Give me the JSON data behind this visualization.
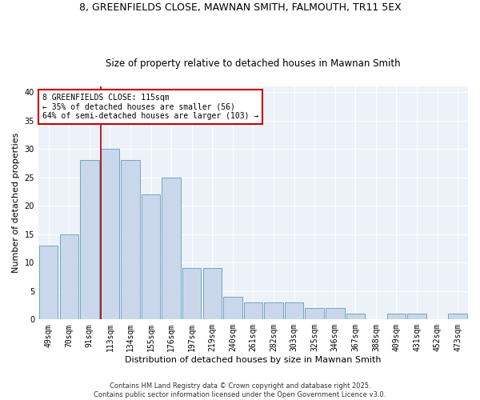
{
  "title1": "8, GREENFIELDS CLOSE, MAWNAN SMITH, FALMOUTH, TR11 5EX",
  "title2": "Size of property relative to detached houses in Mawnan Smith",
  "xlabel": "Distribution of detached houses by size in Mawnan Smith",
  "ylabel": "Number of detached properties",
  "categories": [
    "49sqm",
    "70sqm",
    "91sqm",
    "113sqm",
    "134sqm",
    "155sqm",
    "176sqm",
    "197sqm",
    "219sqm",
    "240sqm",
    "261sqm",
    "282sqm",
    "303sqm",
    "325sqm",
    "346sqm",
    "367sqm",
    "388sqm",
    "409sqm",
    "431sqm",
    "452sqm",
    "473sqm"
  ],
  "values": [
    13,
    15,
    28,
    30,
    28,
    22,
    25,
    9,
    9,
    4,
    3,
    3,
    3,
    2,
    2,
    1,
    0,
    1,
    1,
    0,
    1
  ],
  "bar_color": "#c8d8ea",
  "bar_edge_color": "#6699bb",
  "highlight_index": 3,
  "vline_color": "#aa0000",
  "ylim": [
    0,
    41
  ],
  "yticks": [
    0,
    5,
    10,
    15,
    20,
    25,
    30,
    35,
    40
  ],
  "bg_color": "#edf2f8",
  "annotation_line1": "8 GREENFIELDS CLOSE: 115sqm",
  "annotation_line2": "← 35% of detached houses are smaller (56)",
  "annotation_line3": "64% of semi-detached houses are larger (103) →",
  "annotation_box_color": "#cc0000",
  "footnote1": "Contains HM Land Registry data © Crown copyright and database right 2025.",
  "footnote2": "Contains public sector information licensed under the Open Government Licence v3.0.",
  "title_fontsize": 9,
  "subtitle_fontsize": 8.5,
  "xlabel_fontsize": 8,
  "ylabel_fontsize": 8,
  "tick_fontsize": 7,
  "annotation_fontsize": 7,
  "footnote_fontsize": 6
}
